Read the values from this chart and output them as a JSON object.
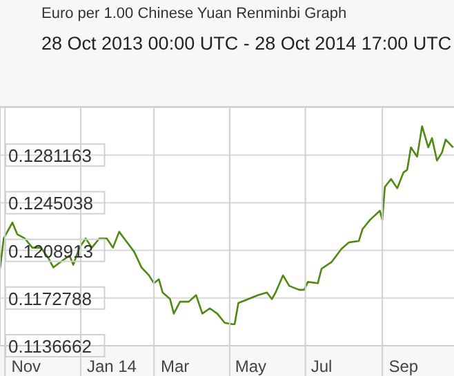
{
  "chart_data": {
    "type": "line",
    "title": "Euro per 1.00 Chinese Yuan Renminbi Graph",
    "subtitle": "28 Oct 2013 00:00 UTC - 28 Oct 2014 17:00 UTC",
    "x": [
      "2013-10-28",
      "2013-10-31",
      "2013-11-07",
      "2013-11-11",
      "2013-11-17",
      "2013-11-23",
      "2013-11-30",
      "2013-12-06",
      "2013-12-10",
      "2013-12-17",
      "2013-12-23",
      "2013-12-26",
      "2013-12-31",
      "2014-01-05",
      "2014-01-10",
      "2014-01-16",
      "2014-01-22",
      "2014-01-27",
      "2014-02-01",
      "2014-02-05",
      "2014-02-13",
      "2014-02-19",
      "2014-02-25",
      "2014-03-01",
      "2014-03-05",
      "2014-03-08",
      "2014-03-14",
      "2014-03-17",
      "2014-03-22",
      "2014-03-29",
      "2014-04-04",
      "2014-04-09",
      "2014-04-15",
      "2014-04-21",
      "2014-04-27",
      "2014-05-03",
      "2014-05-05",
      "2014-05-08",
      "2014-05-16",
      "2014-05-24",
      "2014-05-31",
      "2014-06-04",
      "2014-06-07",
      "2014-06-13",
      "2014-06-18",
      "2014-06-26",
      "2014-06-30",
      "2014-07-03",
      "2014-07-11",
      "2014-07-14",
      "2014-07-22",
      "2014-07-30",
      "2014-08-05",
      "2014-08-13",
      "2014-08-16",
      "2014-08-22",
      "2014-08-30",
      "2014-09-01",
      "2014-09-03",
      "2014-09-08",
      "2014-09-13",
      "2014-09-18",
      "2014-09-21",
      "2014-09-24",
      "2014-09-29",
      "2014-10-03",
      "2014-10-08",
      "2014-10-11",
      "2014-10-15",
      "2014-10-19",
      "2014-10-22",
      "2014-10-28"
    ],
    "series": [
      {
        "color": "#4f8a10",
        "values": [
          0.1195,
          0.1218,
          0.123,
          0.1221,
          0.1218,
          0.1211,
          0.1211,
          0.1203,
          0.1196,
          0.1201,
          0.1205,
          0.1198,
          0.1211,
          0.1218,
          0.1211,
          0.1218,
          0.1218,
          0.1211,
          0.1223,
          0.1218,
          0.1208,
          0.1196,
          0.119,
          0.1184,
          0.1187,
          0.1177,
          0.1172,
          0.1161,
          0.117,
          0.117,
          0.1175,
          0.1161,
          0.1165,
          0.1161,
          0.1154,
          0.1153,
          0.1153,
          0.1169,
          0.1172,
          0.1175,
          0.1177,
          0.1172,
          0.1177,
          0.119,
          0.1182,
          0.1179,
          0.1179,
          0.1185,
          0.1184,
          0.1195,
          0.12,
          0.121,
          0.1215,
          0.1216,
          0.1225,
          0.1232,
          0.1239,
          0.1232,
          0.1257,
          0.1263,
          0.1256,
          0.1268,
          0.127,
          0.1287,
          0.128,
          0.1303,
          0.1287,
          0.1294,
          0.1277,
          0.1283,
          0.1293,
          0.1287
        ]
      }
    ],
    "xlim": [
      "2013-10-28T00:00",
      "2014-10-28T17:00"
    ],
    "xticks": [
      {
        "value": "2013-11-01",
        "label": null
      },
      {
        "value": "2013-11-18",
        "label": "Nov"
      },
      {
        "value": "2014-01-01",
        "label": null
      },
      {
        "value": "2014-01-26",
        "label": "Jan 14"
      },
      {
        "value": "2014-03-01",
        "label": null
      },
      {
        "value": "2014-03-18",
        "label": "Mar"
      },
      {
        "value": "2014-05-01",
        "label": null
      },
      {
        "value": "2014-05-18",
        "label": "May"
      },
      {
        "value": "2014-07-01",
        "label": null
      },
      {
        "value": "2014-07-14",
        "label": "Jul"
      },
      {
        "value": "2014-09-01",
        "label": null
      },
      {
        "value": "2014-09-18",
        "label": "Sep"
      }
    ],
    "ylim": [
      0.1136662,
      0.1317288
    ],
    "yticks": [
      0.1136662,
      0.1172788,
      0.1208913,
      0.1245038,
      0.1281163
    ],
    "grid": true,
    "legend": false,
    "marker": "none",
    "line_style": "solid"
  }
}
